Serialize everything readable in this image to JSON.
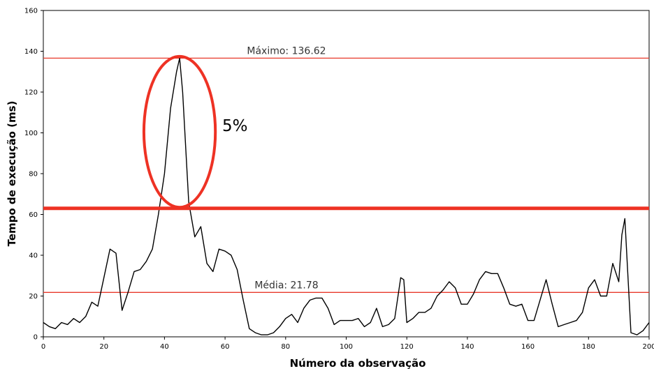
{
  "chart_data": {
    "type": "line",
    "title": "",
    "xlabel": "Número da observação",
    "ylabel": "Tempo de execução (ms)",
    "xlim": [
      0,
      200
    ],
    "ylim": [
      0,
      160
    ],
    "x_ticks": [
      0,
      20,
      40,
      60,
      80,
      100,
      120,
      140,
      160,
      180,
      200
    ],
    "y_ticks": [
      0,
      20,
      40,
      60,
      80,
      100,
      120,
      140,
      160
    ],
    "grid": false,
    "series": [
      {
        "color": "#000000",
        "x": [
          0,
          2,
          4,
          6,
          8,
          10,
          12,
          14,
          16,
          18,
          20,
          22,
          24,
          26,
          28,
          30,
          32,
          34,
          36,
          38,
          40,
          42,
          44,
          45,
          46,
          48,
          50,
          52,
          54,
          56,
          58,
          60,
          62,
          64,
          66,
          68,
          70,
          72,
          74,
          76,
          78,
          80,
          82,
          84,
          86,
          88,
          90,
          92,
          94,
          96,
          98,
          100,
          102,
          104,
          106,
          108,
          110,
          112,
          114,
          116,
          118,
          119,
          120,
          122,
          124,
          126,
          128,
          130,
          132,
          134,
          136,
          138,
          140,
          142,
          144,
          146,
          148,
          150,
          152,
          154,
          156,
          158,
          160,
          162,
          164,
          166,
          168,
          170,
          172,
          174,
          176,
          178,
          180,
          182,
          184,
          186,
          188,
          190,
          191,
          192,
          194,
          196,
          198,
          200
        ],
        "values": [
          7,
          5,
          4,
          7,
          6,
          9,
          7,
          10,
          17,
          15,
          29,
          43,
          41,
          13,
          22,
          32,
          33,
          37,
          43,
          60,
          80,
          112,
          130,
          136.62,
          120,
          66,
          49,
          54,
          36,
          32,
          43,
          42,
          40,
          33,
          18,
          4,
          2,
          1,
          1,
          2,
          5,
          9,
          11,
          7,
          14,
          18,
          19,
          19,
          14,
          6,
          8,
          8,
          8,
          9,
          5,
          7,
          14,
          5,
          6,
          9,
          29,
          28,
          7,
          9,
          12,
          12,
          14,
          20,
          23,
          27,
          24,
          16,
          16,
          21,
          28,
          32,
          31,
          31,
          24,
          16,
          15,
          16,
          8,
          8,
          18,
          28,
          16,
          5,
          6,
          7,
          8,
          12,
          24,
          28,
          20,
          20,
          36,
          27,
          50,
          58,
          2,
          1,
          3,
          7
        ]
      }
    ],
    "reference_lines": [
      {
        "label": "Máximo: 136.62",
        "y": 136.62,
        "color": "#e8392b"
      },
      {
        "label": "Média: 21.78",
        "y": 21.78,
        "color": "#e8392b"
      }
    ],
    "threshold_line": {
      "y": 63,
      "color": "#ee3224"
    },
    "annotation": {
      "text": "5%",
      "color": "#ee3224",
      "ellipse_center": [
        45,
        100.5
      ],
      "ellipse_radius": [
        11.8,
        37
      ]
    }
  }
}
